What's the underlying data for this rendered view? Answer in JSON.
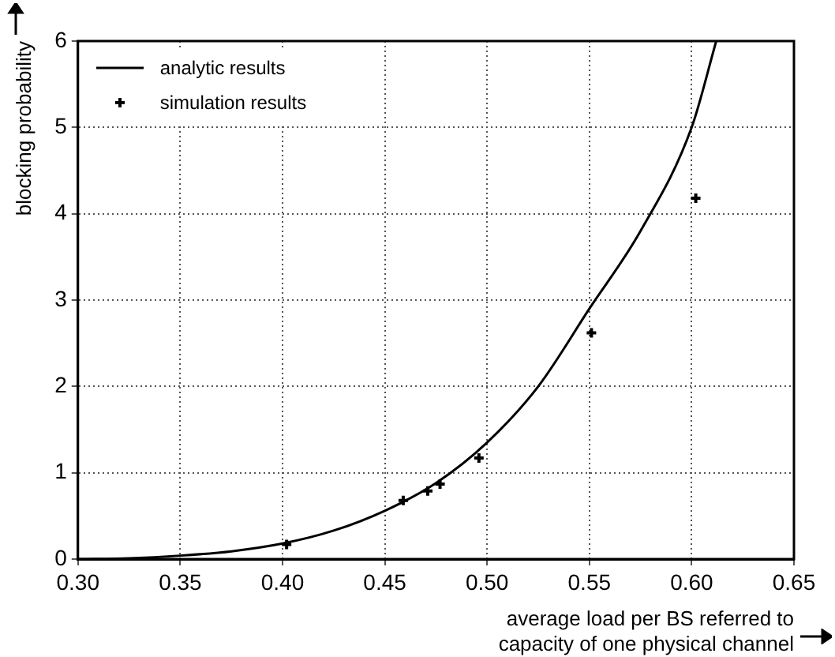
{
  "chart_data": {
    "type": "line",
    "xlabel": "average load per BS referred to capacity of one physical channel",
    "ylabel": "blocking probability",
    "xlim": [
      0.3,
      0.65
    ],
    "xticks": [
      {
        "value": 0.3,
        "label": "0.30"
      },
      {
        "value": 0.35,
        "label": "0.35"
      },
      {
        "value": 0.4,
        "label": "0.40"
      },
      {
        "value": 0.45,
        "label": "0.45"
      },
      {
        "value": 0.5,
        "label": "0.50"
      },
      {
        "value": 0.55,
        "label": "0.55"
      },
      {
        "value": 0.6,
        "label": "0.60"
      },
      {
        "value": 0.65,
        "label": "0.65"
      }
    ],
    "ylim": [
      0,
      6
    ],
    "yticks": [
      0,
      1,
      2,
      3,
      4,
      5,
      6
    ],
    "grid": true,
    "legend": "top left",
    "series": [
      {
        "name": "analytic results",
        "color": "#000000",
        "line_style": "solid",
        "marker": "none",
        "x": [
          0.3,
          0.325,
          0.35,
          0.375,
          0.4,
          0.425,
          0.45,
          0.475,
          0.5,
          0.525,
          0.55,
          0.575,
          0.6,
          0.612
        ],
        "values": [
          0,
          0.01,
          0.04,
          0.09,
          0.18,
          0.33,
          0.56,
          0.88,
          1.35,
          2.0,
          2.9,
          3.8,
          5.0,
          6.0
        ]
      },
      {
        "name": "simulation results",
        "type": "scatter",
        "color": "#000000",
        "marker": "cross",
        "x": [
          0.402,
          0.459,
          0.471,
          0.477,
          0.496,
          0.551,
          0.602
        ],
        "values": [
          0.17,
          0.68,
          0.79,
          0.87,
          1.17,
          2.62,
          4.18
        ]
      }
    ]
  }
}
